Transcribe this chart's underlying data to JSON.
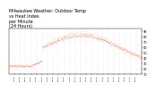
{
  "title": "Milwaukee Weather: Outdoor Temp\nvs Heat Index\nper Minute\n(24 Hours)",
  "title_fontsize": 3.5,
  "background_color": "#ffffff",
  "line1_color": "#ff0000",
  "line2_color": "#ff8c00",
  "ylim": [
    10,
    95
  ],
  "xlim": [
    0,
    1440
  ],
  "yticks": [
    10,
    20,
    30,
    40,
    50,
    60,
    70,
    80,
    90
  ],
  "x_labels": [
    "01:00",
    "02:00",
    "03:00",
    "04:00",
    "05:00",
    "06:00",
    "07:00",
    "08:00",
    "09:00",
    "10:00",
    "11:00",
    "12:00",
    "13:00",
    "14:00",
    "15:00",
    "16:00",
    "17:00",
    "18:00",
    "19:00",
    "20:00",
    "21:00",
    "22:00",
    "23:00"
  ]
}
